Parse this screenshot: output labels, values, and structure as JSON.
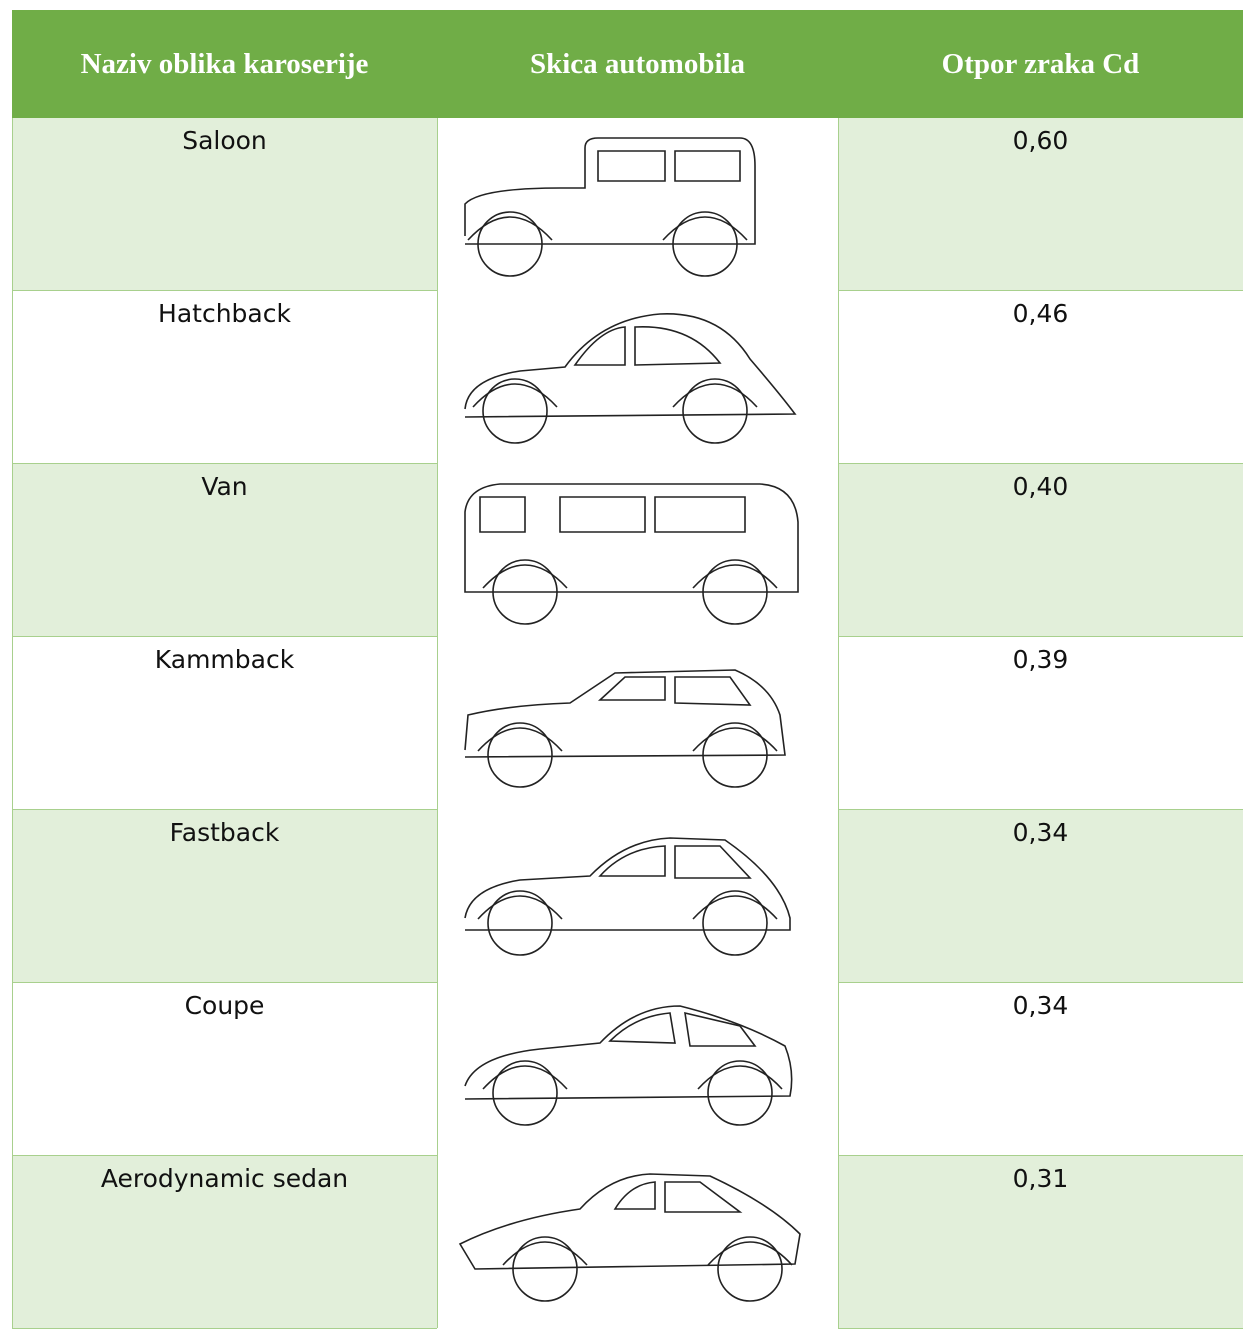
{
  "table": {
    "headers": [
      "Naziv oblika karoserije",
      "Skica automobila",
      "Otpor zraka Cd"
    ],
    "rows": [
      [
        "Saloon",
        "0,60"
      ],
      [
        "Hatchback",
        "0,46"
      ],
      [
        "Van",
        "0,40"
      ],
      [
        "Kammback",
        "0,39"
      ],
      [
        "Fastback",
        "0,34"
      ],
      [
        "Coupe",
        "0,34"
      ],
      [
        "Aerodynamic sedan",
        "0,31"
      ]
    ]
  }
}
